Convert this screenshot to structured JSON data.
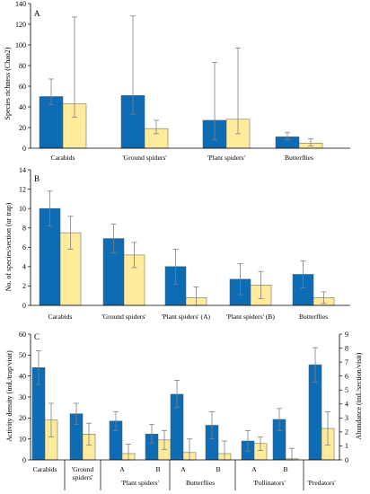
{
  "colors": {
    "series_a": "#0e6cb5",
    "series_b": "#ffeb9c",
    "edge": "#555555",
    "error": "#7f7f7f"
  },
  "chart_data": [
    {
      "type": "bar",
      "panel_label": "A",
      "ylabel": "Species richness (Chao2)",
      "ylim": [
        0,
        140
      ],
      "yticks": [
        0,
        20,
        40,
        60,
        80,
        100,
        120,
        140
      ],
      "categories": [
        "Carabids",
        "'Ground spiders'",
        "'Plant spiders'",
        "Butterflies"
      ],
      "series": [
        {
          "values": [
            50,
            51,
            27,
            11
          ],
          "err_high": [
            67,
            128,
            83,
            15
          ],
          "err_low": [
            42,
            33,
            8,
            8
          ]
        },
        {
          "values": [
            43,
            19,
            28,
            5
          ],
          "err_high": [
            127,
            27,
            97,
            9
          ],
          "err_low": [
            30,
            14,
            14,
            2
          ]
        }
      ]
    },
    {
      "type": "bar",
      "panel_label": "B",
      "ylabel": "No. of species/section (or trap)",
      "ylim": [
        0,
        14
      ],
      "yticks": [
        0,
        2,
        4,
        6,
        8,
        10,
        12,
        14
      ],
      "categories": [
        "Carabids",
        "'Ground spiders'",
        "'Plant spiders' (A)",
        "'Plant spiders' (B)",
        "Butterflies"
      ],
      "series": [
        {
          "values": [
            10.0,
            6.9,
            4.0,
            2.7,
            3.2
          ],
          "err_high": [
            11.8,
            8.4,
            5.8,
            4.3,
            4.6
          ],
          "err_low": [
            8.2,
            5.4,
            2.2,
            1.1,
            1.8
          ]
        },
        {
          "values": [
            7.5,
            5.2,
            0.8,
            2.1,
            0.8
          ],
          "err_high": [
            9.2,
            6.5,
            1.9,
            3.5,
            1.4
          ],
          "err_low": [
            5.8,
            3.9,
            0.0,
            0.7,
            0.2
          ]
        }
      ]
    },
    {
      "type": "bar",
      "panel_label": "C",
      "ylabel": "Activity density (ind./trap/visit)",
      "ylabel_right": "Abundance (ind./section/visit)",
      "ylim": [
        0,
        60
      ],
      "yticks": [
        0,
        10,
        20,
        30,
        40,
        50,
        60
      ],
      "ylim_right": [
        0,
        9
      ],
      "yticks_right": [
        0,
        1,
        2,
        3,
        4,
        5,
        6,
        7,
        8,
        9
      ],
      "groups": [
        {
          "label": "Carabids",
          "subs": [
            ""
          ]
        },
        {
          "label": "'Ground spiders'",
          "subs": [
            ""
          ]
        },
        {
          "label": "'Plant spiders'",
          "subs": [
            "A",
            "B"
          ]
        },
        {
          "label": "Butterflies",
          "subs": [
            "A",
            "B"
          ]
        },
        {
          "label": "'Pollinators'",
          "subs": [
            "A",
            "B"
          ]
        },
        {
          "label": "'Predators'",
          "subs": [
            ""
          ]
        }
      ],
      "series": [
        {
          "values": [
            44,
            22,
            18.5,
            12.3,
            31.3,
            16.5,
            9,
            19.3,
            45.4
          ],
          "err_high": [
            52,
            27,
            23,
            17,
            38,
            23,
            14,
            24.5,
            53.5
          ],
          "err_low": [
            36,
            17,
            14,
            8,
            25,
            10,
            4,
            14,
            37
          ]
        },
        {
          "values": [
            19,
            12.3,
            3,
            9.5,
            3.5,
            3,
            7.8,
            0.5,
            15
          ],
          "err_high": [
            27,
            17.5,
            7.5,
            14,
            10,
            9,
            11,
            5.5,
            23
          ],
          "err_low": [
            11,
            7,
            0,
            5,
            0,
            0,
            4.5,
            0,
            7
          ]
        }
      ]
    }
  ]
}
